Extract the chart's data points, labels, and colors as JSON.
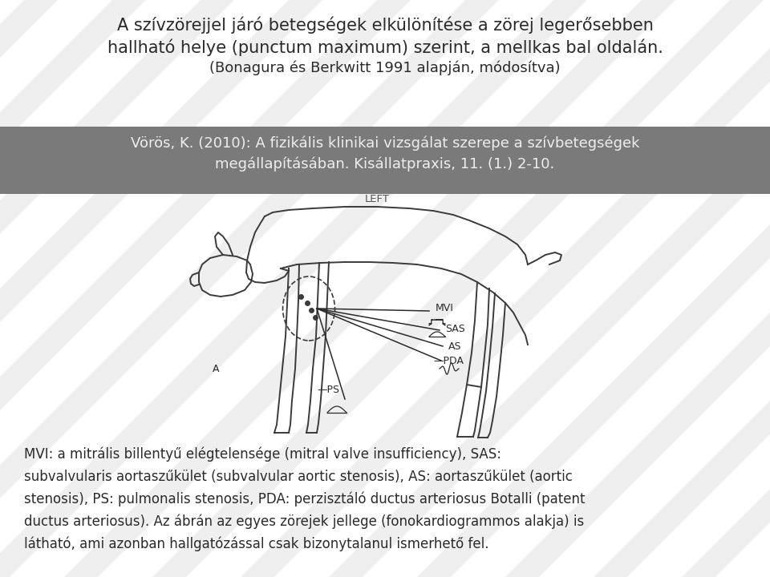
{
  "title_line1": "A szívzörejjel járó betegségek elkülönítése a zörej legerősebben",
  "title_line2": "hallható helye (punctum maximum) szerint, a mellkas bal oldalán.",
  "title_line3": "(Bonagura és Berkwitt 1991 alapján, módosítva)",
  "sub_line1": "Vörös, K. (2010): A fizikális klinikai vizsgálat szerepe a szívbetegségek",
  "sub_line2": "megállapításában. Kisállatpraxis, 11. (1.) 2-10.",
  "cap_line1": "MVI: a mitrális billentyű elégtelensége (mitral valve insufficiency), SAS:",
  "cap_line2": "subvalvularis aortaszűkület (subvalvular aortic stenosis), AS: aortaszűkület (aortic",
  "cap_line3": "stenosis), PS: pulmonalis stenosis, PDA: perzisztáló ductus arteriosus Botalli (patent",
  "cap_line4": "ductus arteriosus). Az ábrán az egyes zörejek jellege (fonokardiogrammos alakja) is",
  "cap_line5": "látható, ami azonban hallgatózással csak bizonytalanul ismerhető fel.",
  "bg_color": "#ffffff",
  "subtitle_bg": "#7a7a7a",
  "title_color": "#2a2a2a",
  "subtitle_color": "#eeeeee",
  "caption_color": "#2a2a2a",
  "stripe_color": "#c8c8c8"
}
